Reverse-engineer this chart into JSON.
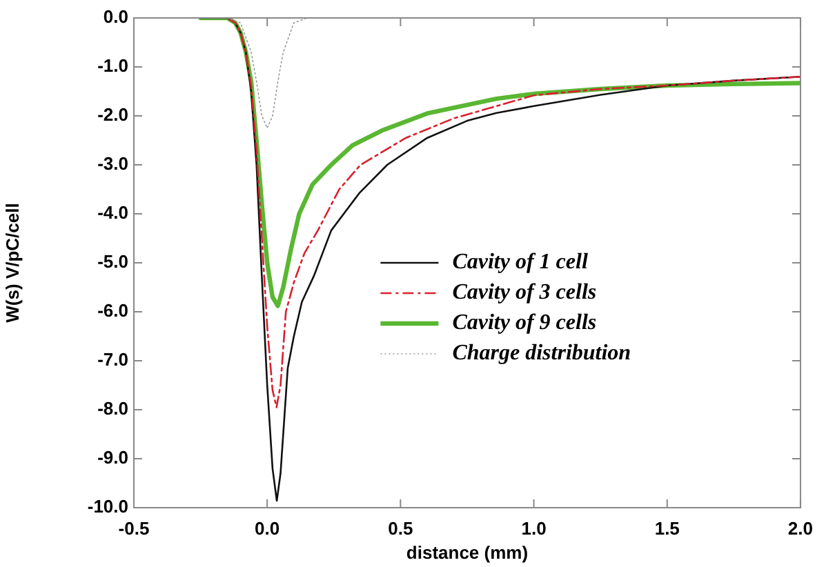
{
  "chart_data": {
    "type": "line",
    "xlabel": "distance (mm)",
    "ylabel": "W(s) V/pC/cell",
    "xlim": [
      -0.5,
      2.0
    ],
    "xticks": [
      {
        "value": -0.5,
        "label": "-0.5"
      },
      {
        "value": 0,
        "label": "0.0"
      },
      {
        "value": 0.5,
        "label": "0.5"
      },
      {
        "value": 1,
        "label": "1.0"
      },
      {
        "value": 1.5,
        "label": "1.5"
      },
      {
        "value": 2,
        "label": "2.0"
      }
    ],
    "ylim": [
      -10,
      0
    ],
    "yticks": [
      {
        "value": 0,
        "label": "0.0"
      },
      {
        "value": -1,
        "label": "-1.0"
      },
      {
        "value": -2,
        "label": "-2.0"
      },
      {
        "value": -3,
        "label": "-3.0"
      },
      {
        "value": -4,
        "label": "-4.0"
      },
      {
        "value": -5,
        "label": "-5.0"
      },
      {
        "value": -6,
        "label": "-6.0"
      },
      {
        "value": -7,
        "label": "-7.0"
      },
      {
        "value": -8,
        "label": "-8.0"
      },
      {
        "value": -9,
        "label": "-9.0"
      },
      {
        "value": -10,
        "label": "-10.0"
      }
    ],
    "grid": false,
    "legend": "center",
    "marker": "none",
    "series": [
      {
        "name": "Cavity of 1 cell",
        "color": "#111111",
        "line_style": "solid",
        "x": [
          -0.25,
          -0.15,
          -0.12,
          -0.1,
          -0.08,
          -0.06,
          -0.04,
          -0.02,
          0,
          0.02,
          0.036,
          0.05,
          0.077,
          0.1,
          0.13,
          0.175,
          0.24,
          0.345,
          0.45,
          0.6,
          0.75,
          0.86,
          1.0,
          1.25,
          1.5,
          1.75,
          2.0
        ],
        "values": [
          0,
          0,
          -0.1,
          -0.3,
          -0.7,
          -1.5,
          -3,
          -5.3,
          -7.5,
          -9.2,
          -9.86,
          -9.3,
          -7.15,
          -6.5,
          -5.8,
          -5.27,
          -4.34,
          -3.58,
          -3.0,
          -2.45,
          -2.1,
          -1.94,
          -1.8,
          -1.57,
          -1.38,
          -1.28,
          -1.2
        ]
      },
      {
        "name": "Cavity of 3 cells",
        "color": "#d9202e",
        "line_style": "dashed",
        "x": [
          -0.15,
          -0.12,
          -0.1,
          -0.08,
          -0.06,
          -0.04,
          -0.02,
          0,
          0.02,
          0.035,
          0.05,
          0.07,
          0.1,
          0.14,
          0.19,
          0.27,
          0.35,
          0.52,
          0.7,
          0.86,
          1.0,
          1.25,
          1.5,
          1.75,
          2.0
        ],
        "values": [
          0,
          -0.1,
          -0.3,
          -0.7,
          -1.4,
          -2.7,
          -4.5,
          -6.3,
          -7.6,
          -7.95,
          -7.5,
          -6.0,
          -5.4,
          -4.8,
          -4.34,
          -3.5,
          -3.0,
          -2.45,
          -2.05,
          -1.8,
          -1.58,
          -1.45,
          -1.38,
          -1.28,
          -1.2
        ]
      },
      {
        "name": "Cavity of 9 cells",
        "color": "#5ab732",
        "line_style": "solid",
        "x": [
          -0.25,
          -0.15,
          -0.12,
          -0.1,
          -0.08,
          -0.06,
          -0.04,
          -0.02,
          0,
          0.02,
          0.04,
          0.06,
          0.09,
          0.12,
          0.17,
          0.24,
          0.32,
          0.43,
          0.6,
          0.86,
          1.0,
          1.25,
          1.5,
          1.75,
          2.0
        ],
        "values": [
          0,
          0,
          -0.1,
          -0.3,
          -0.7,
          -1.3,
          -2.5,
          -3.8,
          -5.0,
          -5.7,
          -5.88,
          -5.5,
          -4.7,
          -4.0,
          -3.4,
          -3.0,
          -2.6,
          -2.3,
          -1.95,
          -1.65,
          -1.55,
          -1.45,
          -1.38,
          -1.35,
          -1.33
        ]
      },
      {
        "name": "Charge distribution",
        "color": "#999999",
        "line_style": "dotted",
        "x": [
          -0.15,
          -0.1,
          -0.06,
          -0.04,
          -0.02,
          0,
          0.02,
          0.04,
          0.06,
          0.1,
          0.15,
          0.18
        ],
        "values": [
          0,
          -0.1,
          -0.7,
          -1.3,
          -2.0,
          -2.25,
          -2.0,
          -1.3,
          -0.7,
          -0.1,
          0,
          0
        ]
      }
    ]
  }
}
